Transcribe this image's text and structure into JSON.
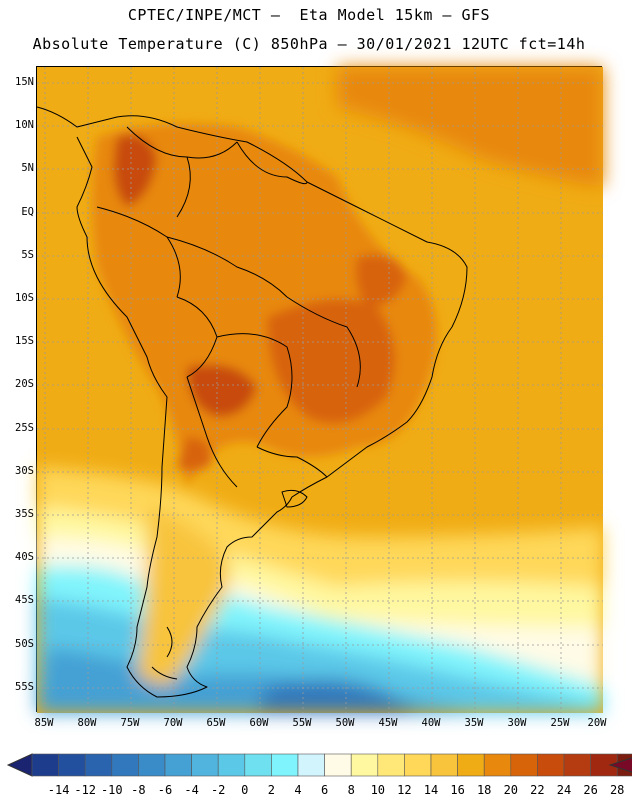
{
  "header": {
    "line1": "CPTEC/INPE/MCT –  Eta Model 15km – GFS",
    "line2": "Absolute Temperature (C) 850hPa – 30/01/2021 12UTC fct=14h"
  },
  "map": {
    "lat_labels": [
      "15N",
      "10N",
      "5N",
      "EQ",
      "5S",
      "10S",
      "15S",
      "20S",
      "25S",
      "30S",
      "35S",
      "40S",
      "45S",
      "50S",
      "55S"
    ],
    "lon_labels": [
      "85W",
      "80W",
      "75W",
      "70W",
      "65W",
      "60W",
      "55W",
      "50W",
      "45W",
      "40W",
      "35W",
      "30W",
      "25W",
      "20W"
    ]
  },
  "colorbar": {
    "labels": [
      "-14",
      "-12",
      "-10",
      "-8",
      "-6",
      "-4",
      "-2",
      "0",
      "2",
      "4",
      "6",
      "8",
      "10",
      "12",
      "14",
      "16",
      "18",
      "20",
      "22",
      "24",
      "26",
      "28"
    ],
    "colors": [
      "#1e3c8c",
      "#23509e",
      "#2a64ae",
      "#3278bc",
      "#3a8cc8",
      "#45a0d4",
      "#50b4de",
      "#5cc8e8",
      "#6ee0f0",
      "#80f4fc",
      "#d2f4fc",
      "#fffbe6",
      "#fff8a0",
      "#ffe878",
      "#ffd85a",
      "#f8c43c",
      "#f0ac14",
      "#e8880c",
      "#d8640a",
      "#c84c0c",
      "#b43c10",
      "#a02810",
      "#7a1c10"
    ],
    "end_low": "#1a2470",
    "end_high": "#780a28"
  }
}
